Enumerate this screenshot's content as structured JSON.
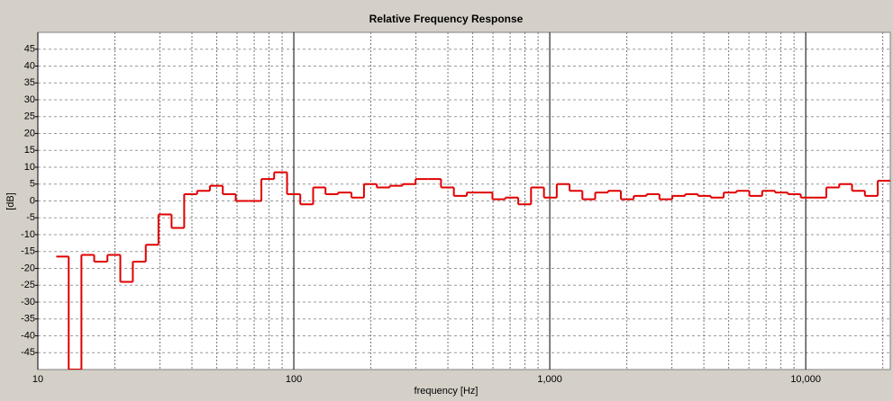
{
  "chart_data": {
    "type": "step",
    "title": "Relative Frequency Response",
    "x_label": "frequency [Hz]",
    "y_label": "[dB]",
    "log_x": true,
    "grid": true,
    "xlim": [
      10,
      21400
    ],
    "ylim": [
      -50,
      50
    ],
    "xticks": [
      10,
      100,
      {
        "value": 1000,
        "label": "1,000"
      },
      {
        "value": 10000,
        "label": "10,000"
      }
    ],
    "yticks": [
      -45,
      -40,
      -35,
      -30,
      -25,
      -20,
      -15,
      -10,
      -5,
      0,
      5,
      10,
      15,
      20,
      25,
      30,
      35,
      40,
      45
    ],
    "series": [
      {
        "color": "#e00000",
        "x": [
          11.8,
          13.2,
          14.8,
          16.6,
          18.7,
          21.0,
          23.5,
          26.4,
          29.6,
          33.3,
          37.3,
          41.9,
          47.0,
          52.8,
          59.3,
          66.5,
          74.7,
          83.8,
          94.1,
          106,
          119,
          133,
          149,
          168,
          188,
          211,
          237,
          266,
          299,
          335,
          376,
          422,
          474,
          532,
          597,
          670,
          753,
          845,
          949,
          1065,
          1195,
          1341,
          1505,
          1689,
          1896,
          2128,
          2389,
          2682,
          3011,
          3380,
          3794,
          4258,
          4780,
          5365,
          6022,
          6760,
          7587,
          8517,
          9560,
          10730,
          12040,
          13520,
          15170,
          17030,
          19120
        ],
        "values": [
          -16.5,
          -50,
          -16,
          -18,
          -16,
          -24,
          -18,
          -13,
          -4,
          -8,
          2,
          3,
          4.5,
          2,
          0,
          0,
          6.5,
          8.5,
          2,
          -1,
          4,
          2,
          2.5,
          1,
          5,
          4,
          4.5,
          5,
          6.5,
          6.5,
          4,
          1.5,
          2.5,
          2.5,
          0.5,
          1,
          -1,
          4,
          1,
          5,
          3,
          0.5,
          2.5,
          3,
          0.5,
          1.5,
          2,
          0.5,
          1.5,
          2,
          1.5,
          1,
          2.5,
          3,
          1.5,
          3,
          2.5,
          2,
          1,
          1,
          4,
          5,
          3,
          1.5,
          6
        ]
      }
    ]
  }
}
